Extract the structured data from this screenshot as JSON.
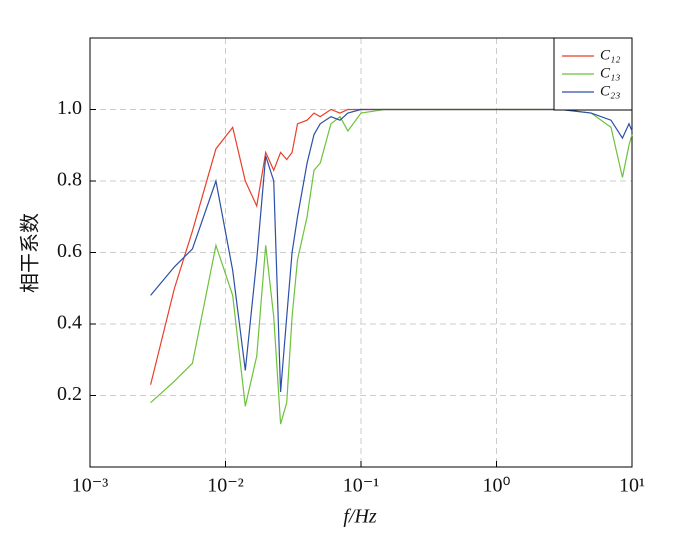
{
  "chart_data": {
    "type": "line",
    "xlabel": "f/Hz",
    "ylabel": "相干系数",
    "x": [
      0.0028,
      0.0042,
      0.0057,
      0.0085,
      0.0113,
      0.014,
      0.017,
      0.0198,
      0.0227,
      0.0255,
      0.0283,
      0.031,
      0.034,
      0.04,
      0.045,
      0.05,
      0.06,
      0.07,
      0.08,
      0.1,
      0.15,
      1,
      3,
      5,
      7,
      8.5,
      9.5,
      10
    ],
    "series": [
      {
        "name": "C₁₂",
        "color": "#e8402a",
        "values": [
          0.23,
          0.5,
          0.66,
          0.89,
          0.95,
          0.8,
          0.73,
          0.88,
          0.83,
          0.88,
          0.86,
          0.88,
          0.96,
          0.97,
          0.99,
          0.98,
          1.0,
          0.99,
          1.0,
          1.0,
          1.0,
          1.0,
          1.0,
          1.0,
          1.0,
          1.0,
          1.0,
          1.0
        ]
      },
      {
        "name": "C₁₃",
        "color": "#6cc23a",
        "values": [
          0.18,
          0.24,
          0.29,
          0.62,
          0.48,
          0.17,
          0.31,
          0.62,
          0.42,
          0.12,
          0.18,
          0.42,
          0.58,
          0.7,
          0.83,
          0.85,
          0.96,
          0.98,
          0.94,
          0.99,
          1.0,
          1.0,
          1.0,
          0.99,
          0.95,
          0.81,
          0.9,
          0.93
        ]
      },
      {
        "name": "C₂₃",
        "color": "#2c4fa8",
        "values": [
          0.48,
          0.56,
          0.61,
          0.8,
          0.55,
          0.27,
          0.58,
          0.87,
          0.8,
          0.21,
          0.42,
          0.6,
          0.7,
          0.85,
          0.93,
          0.96,
          0.98,
          0.97,
          0.99,
          1.0,
          1.0,
          1.0,
          1.0,
          0.99,
          0.97,
          0.92,
          0.96,
          0.94
        ]
      }
    ],
    "xscale": "log",
    "xlim": [
      0.001,
      10
    ],
    "xticks": [
      {
        "value": 0.001,
        "label": "10⁻³"
      },
      {
        "value": 0.01,
        "label": "10⁻²"
      },
      {
        "value": 0.1,
        "label": "10⁻¹"
      },
      {
        "value": 1,
        "label": "10⁰"
      },
      {
        "value": 10,
        "label": "10¹"
      }
    ],
    "ylim": [
      0,
      1.2
    ],
    "yticks": [
      0.2,
      0.4,
      0.6,
      0.8,
      {
        "value": 1,
        "label": "1.0"
      }
    ],
    "grid": true,
    "legend": "upper right"
  }
}
